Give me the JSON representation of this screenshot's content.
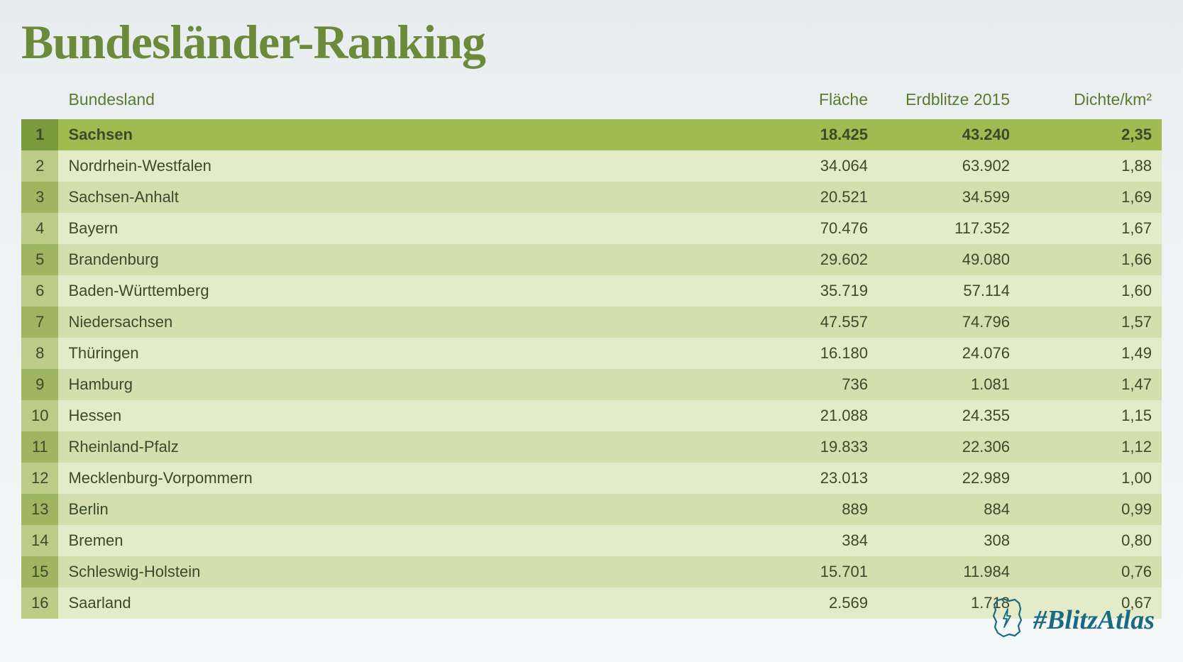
{
  "title": "Bundesländer-Ranking",
  "table": {
    "type": "table",
    "columns": [
      "",
      "Bundesland",
      "Fläche",
      "Erdblitze 2015",
      "Dichte/km²"
    ],
    "column_align": [
      "center",
      "left",
      "right",
      "right",
      "right"
    ],
    "header_color": "#5a7a2e",
    "header_fontsize": 23,
    "body_fontsize": 22,
    "text_color": "#3a4a2a",
    "rank_cell_colors_alt": [
      "#9fb560",
      "#bccb86"
    ],
    "row_colors_alt": [
      "#d5dfae",
      "#e4ebc9"
    ],
    "highlight_row_index": 0,
    "highlight_rank_color": "#7a9a3c",
    "highlight_row_color": "#a0bb50",
    "rows": [
      {
        "rank": "1",
        "name": "Sachsen",
        "flaeche": "18.425",
        "erdblitze": "43.240",
        "dichte": "2,35"
      },
      {
        "rank": "2",
        "name": "Nordrhein-Westfalen",
        "flaeche": "34.064",
        "erdblitze": "63.902",
        "dichte": "1,88"
      },
      {
        "rank": "3",
        "name": "Sachsen-Anhalt",
        "flaeche": "20.521",
        "erdblitze": "34.599",
        "dichte": "1,69"
      },
      {
        "rank": "4",
        "name": "Bayern",
        "flaeche": "70.476",
        "erdblitze": "117.352",
        "dichte": "1,67"
      },
      {
        "rank": "5",
        "name": "Brandenburg",
        "flaeche": "29.602",
        "erdblitze": "49.080",
        "dichte": "1,66"
      },
      {
        "rank": "6",
        "name": "Baden-Württemberg",
        "flaeche": "35.719",
        "erdblitze": "57.114",
        "dichte": "1,60"
      },
      {
        "rank": "7",
        "name": "Niedersachsen",
        "flaeche": "47.557",
        "erdblitze": "74.796",
        "dichte": "1,57"
      },
      {
        "rank": "8",
        "name": "Thüringen",
        "flaeche": "16.180",
        "erdblitze": "24.076",
        "dichte": "1,49"
      },
      {
        "rank": "9",
        "name": "Hamburg",
        "flaeche": "736",
        "erdblitze": "1.081",
        "dichte": "1,47"
      },
      {
        "rank": "10",
        "name": "Hessen",
        "flaeche": "21.088",
        "erdblitze": "24.355",
        "dichte": "1,15"
      },
      {
        "rank": "11",
        "name": "Rheinland-Pfalz",
        "flaeche": "19.833",
        "erdblitze": "22.306",
        "dichte": "1,12"
      },
      {
        "rank": "12",
        "name": "Mecklenburg-Vorpommern",
        "flaeche": "23.013",
        "erdblitze": "22.989",
        "dichte": "1,00"
      },
      {
        "rank": "13",
        "name": "Berlin",
        "flaeche": "889",
        "erdblitze": "884",
        "dichte": "0,99"
      },
      {
        "rank": "14",
        "name": "Bremen",
        "flaeche": "384",
        "erdblitze": "308",
        "dichte": "0,80"
      },
      {
        "rank": "15",
        "name": "Schleswig-Holstein",
        "flaeche": "15.701",
        "erdblitze": "11.984",
        "dichte": "0,76"
      },
      {
        "rank": "16",
        "name": "Saarland",
        "flaeche": "2.569",
        "erdblitze": "1.718",
        "dichte": "0,67"
      }
    ]
  },
  "footer": {
    "hashtag": "#BlitzAtlas",
    "hashtag_color": "#1a6b82",
    "icon_stroke": "#1a6b82"
  },
  "colors": {
    "title_color": "#6b8a3a",
    "background_top": "#e8eef0",
    "background_bottom": "#f5f8f9"
  }
}
